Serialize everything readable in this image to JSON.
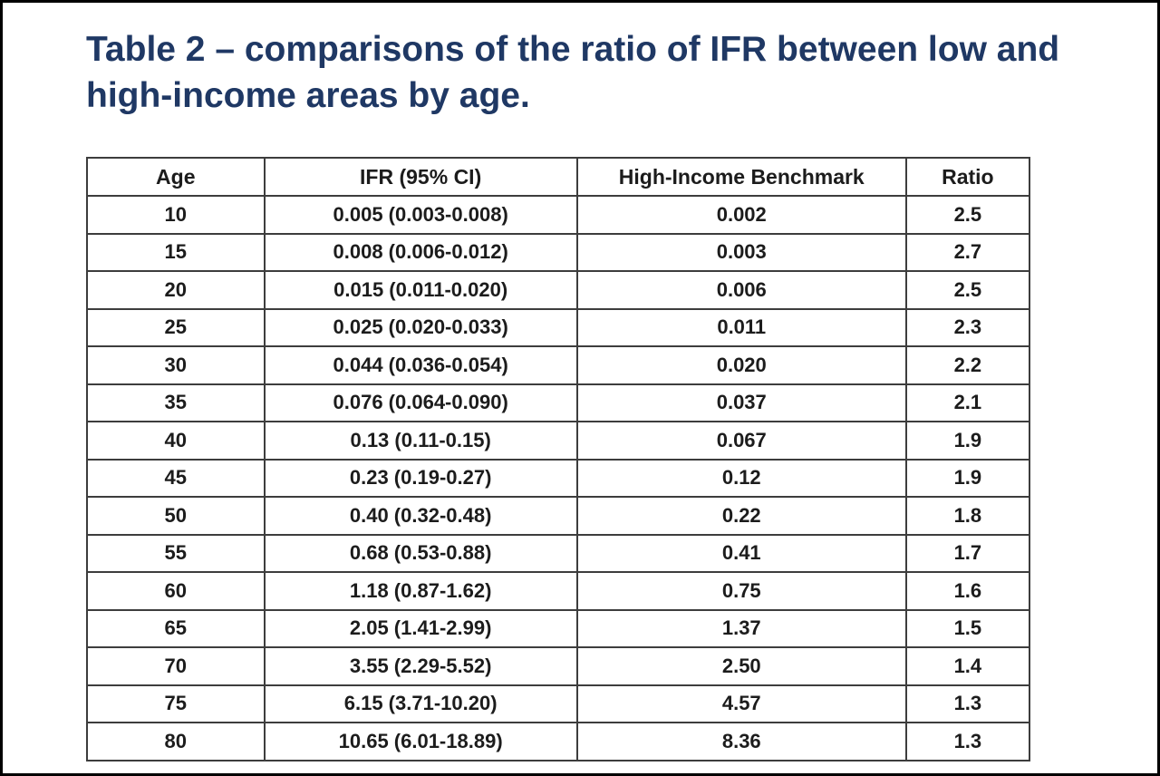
{
  "caption": {
    "line1": "Table 2 – comparisons of the ratio of IFR between low and",
    "line2": "high-income areas by age."
  },
  "colors": {
    "caption_text": "#1f3864",
    "table_border": "#3d3d3d",
    "cell_text": "#1c1c1c",
    "frame_border": "#000000",
    "background": "#ffffff"
  },
  "table": {
    "columns": [
      "Age",
      "IFR (95% CI)",
      "High-Income Benchmark",
      "Ratio"
    ],
    "rows": [
      {
        "age": "10",
        "ifr": "0.005 (0.003-0.008)",
        "benchmark": "0.002",
        "ratio": "2.5"
      },
      {
        "age": "15",
        "ifr": "0.008 (0.006-0.012)",
        "benchmark": "0.003",
        "ratio": "2.7"
      },
      {
        "age": "20",
        "ifr": "0.015 (0.011-0.020)",
        "benchmark": "0.006",
        "ratio": "2.5"
      },
      {
        "age": "25",
        "ifr": "0.025 (0.020-0.033)",
        "benchmark": "0.011",
        "ratio": "2.3"
      },
      {
        "age": "30",
        "ifr": "0.044 (0.036-0.054)",
        "benchmark": "0.020",
        "ratio": "2.2"
      },
      {
        "age": "35",
        "ifr": "0.076 (0.064-0.090)",
        "benchmark": "0.037",
        "ratio": "2.1"
      },
      {
        "age": "40",
        "ifr": "0.13 (0.11-0.15)",
        "benchmark": "0.067",
        "ratio": "1.9"
      },
      {
        "age": "45",
        "ifr": "0.23 (0.19-0.27)",
        "benchmark": "0.12",
        "ratio": "1.9"
      },
      {
        "age": "50",
        "ifr": "0.40 (0.32-0.48)",
        "benchmark": "0.22",
        "ratio": "1.8"
      },
      {
        "age": "55",
        "ifr": "0.68 (0.53-0.88)",
        "benchmark": "0.41",
        "ratio": "1.7"
      },
      {
        "age": "60",
        "ifr": "1.18 (0.87-1.62)",
        "benchmark": "0.75",
        "ratio": "1.6"
      },
      {
        "age": "65",
        "ifr": "2.05 (1.41-2.99)",
        "benchmark": "1.37",
        "ratio": "1.5"
      },
      {
        "age": "70",
        "ifr": "3.55 (2.29-5.52)",
        "benchmark": "2.50",
        "ratio": "1.4"
      },
      {
        "age": "75",
        "ifr": "6.15 (3.71-10.20)",
        "benchmark": "4.57",
        "ratio": "1.3"
      },
      {
        "age": "80",
        "ifr": "10.65 (6.01-18.89)",
        "benchmark": "8.36",
        "ratio": "1.3"
      }
    ]
  }
}
